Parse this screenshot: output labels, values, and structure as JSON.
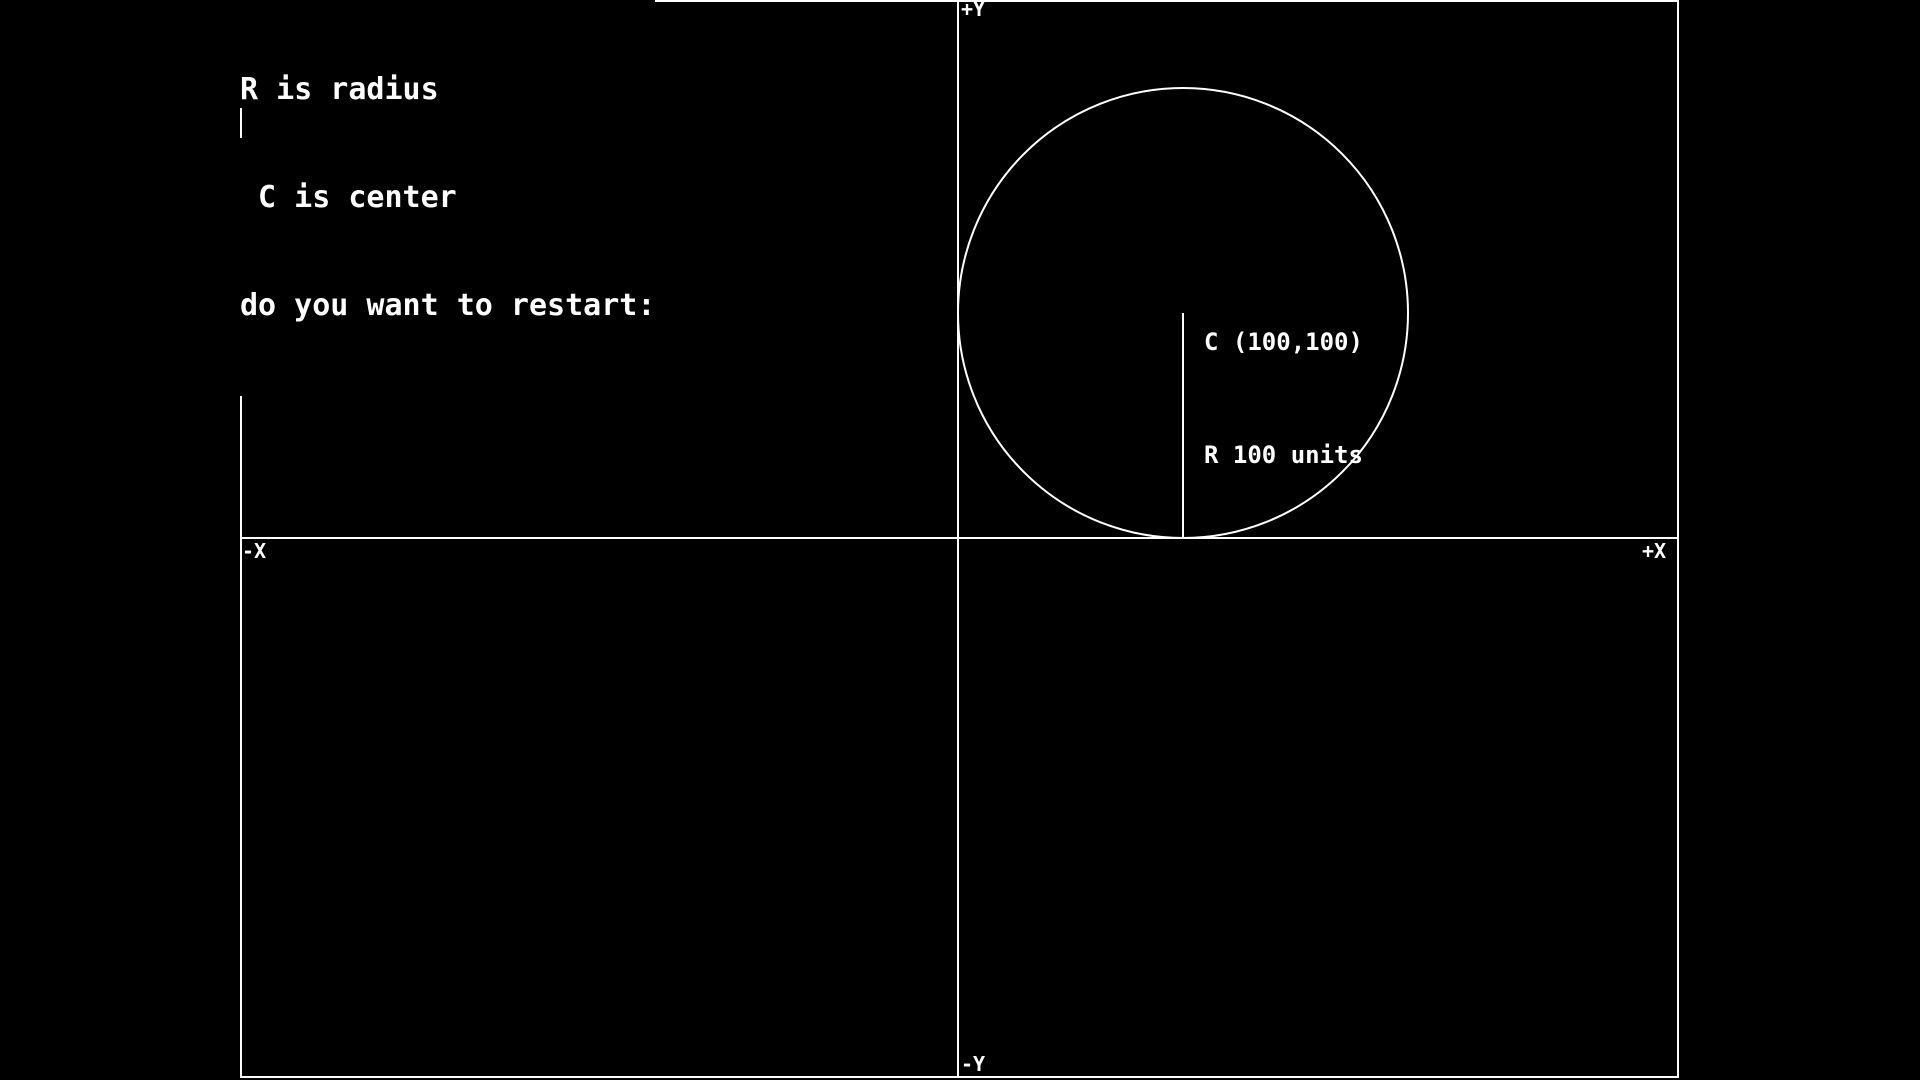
{
  "console": {
    "lines": [
      "R is radius",
      " C is center",
      "do you want to restart:"
    ]
  },
  "axes": {
    "pos_y": "+Y",
    "neg_y": "-Y",
    "pos_x": "+X",
    "neg_x": "-X"
  },
  "circle": {
    "center_label": "C (100,100)",
    "radius_label": "R 100 units",
    "center": [
      100,
      100
    ],
    "radius": 100
  },
  "colors": {
    "background": "#000000",
    "foreground": "#ffffff"
  }
}
